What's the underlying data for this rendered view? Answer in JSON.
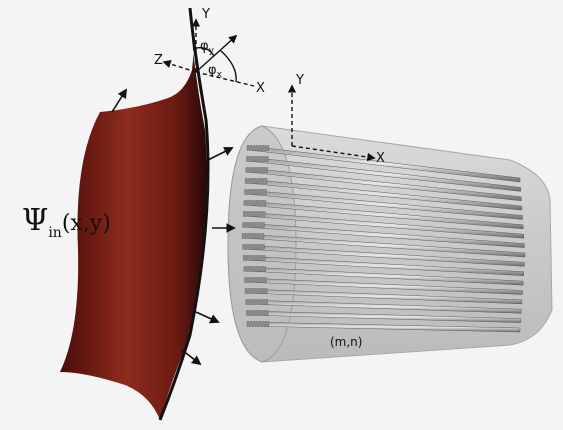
{
  "labels": {
    "axis_y_top": "Y",
    "axis_z": "Z",
    "axis_x_top": "X",
    "phi_y_symbol": "φ",
    "phi_y_sub": "y",
    "phi_x_symbol": "φ",
    "phi_x_sub": "x",
    "axis_y_array": "Y",
    "axis_x_array": "X",
    "psi_symbol": "Ψ",
    "psi_sub": "in",
    "psi_args": "(x,y)",
    "mn": "(m,n)"
  },
  "array": {
    "rows": 17
  },
  "colors": {
    "background": "#f4f4f4",
    "wavefront_dark": "#5a1010",
    "wavefront_mid": "#8c2a1a",
    "cylinder": "#c8c8c8",
    "fiber": "#7a7a7a"
  }
}
